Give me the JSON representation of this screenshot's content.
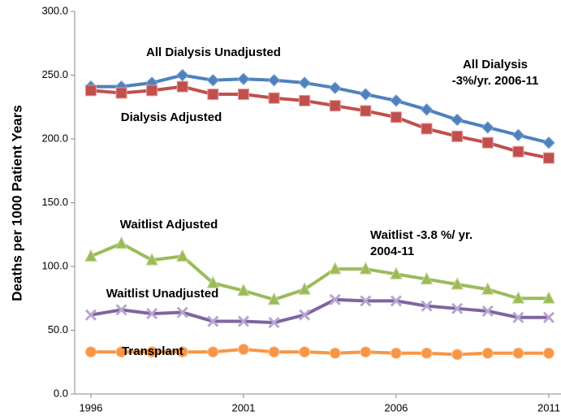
{
  "chart_data": {
    "type": "line",
    "y_label": "Deaths per 1000 Patient Years",
    "x": [
      1996,
      1997,
      1998,
      1999,
      2000,
      2001,
      2002,
      2003,
      2004,
      2005,
      2006,
      2007,
      2008,
      2009,
      2010,
      2011
    ],
    "xlim": [
      1995.47,
      2011.4
    ],
    "xticks": [
      1996,
      2001,
      2006,
      2011
    ],
    "ylim": [
      0,
      300
    ],
    "yticks": [
      {
        "value": 0,
        "label": "0.0"
      },
      {
        "value": 50,
        "label": "50.0"
      },
      {
        "value": 100,
        "label": "100.0"
      },
      {
        "value": 150,
        "label": "150.0"
      },
      {
        "value": 200,
        "label": "200.0"
      },
      {
        "value": 250,
        "label": "250.0"
      },
      {
        "value": 300,
        "label": "300.0"
      }
    ],
    "series": [
      {
        "name": "All Dialysis Unadjusted",
        "color": "#4f81bd",
        "label_color": "#2323cf",
        "marker": "diamond",
        "values": [
          241,
          241,
          244,
          250,
          246,
          247,
          246,
          244,
          240,
          235,
          230,
          223,
          215,
          209,
          203,
          197
        ]
      },
      {
        "name": "Dialysis Adjusted",
        "color": "#c0504d",
        "label_color": "#a0452a",
        "marker": "square",
        "values": [
          238,
          236,
          238,
          241,
          235,
          235,
          232,
          230,
          226,
          222,
          217,
          208,
          202,
          197,
          190,
          185
        ]
      },
      {
        "name": "Waitlist Adjusted",
        "color": "#9bbb59",
        "label_color": "#4a9a20",
        "marker": "triangle",
        "values": [
          108,
          118,
          105,
          108,
          87,
          81,
          74,
          82,
          98,
          98,
          94,
          90,
          86,
          82,
          75,
          75
        ]
      },
      {
        "name": "Waitlist Unadjusted",
        "color": "#8064a2",
        "label_color": "#6a4a9a",
        "marker": "x",
        "values": [
          62,
          66,
          63,
          64,
          57,
          57,
          56,
          62,
          74,
          73,
          73,
          69,
          67,
          65,
          60,
          60
        ]
      },
      {
        "name": "Transplant",
        "color": "#f79646",
        "label_color": "#f0903a",
        "marker": "circle",
        "values": [
          33,
          33,
          33,
          33,
          33,
          35,
          33,
          33,
          32,
          33,
          32,
          32,
          31,
          32,
          32,
          32
        ]
      }
    ],
    "annotations": [
      {
        "lines": [
          "All Dialysis",
          "-3%/yr. 2006-11"
        ],
        "color": "#2323cf"
      },
      {
        "lines": [
          "Waitlist -3.8 %/ yr.",
          "2004-11"
        ],
        "color": "#5a7a30"
      }
    ]
  }
}
